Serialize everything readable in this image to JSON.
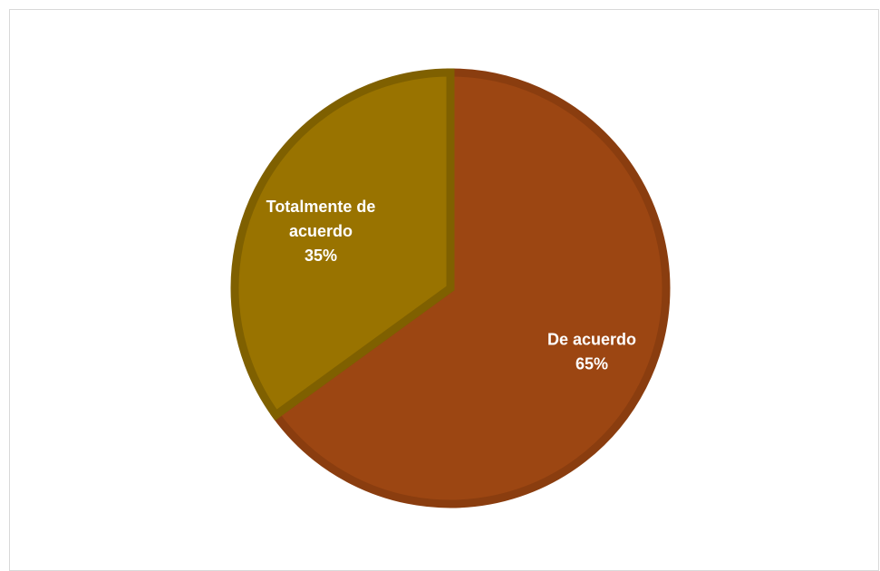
{
  "chart_data": {
    "type": "pie",
    "title": "",
    "start_angle_deg": 0,
    "slices": [
      {
        "name_lines": [
          "De acuerdo"
        ],
        "percent_label": "65%",
        "value": 65,
        "color": "#9c4612",
        "stroke": "#8a3d0f"
      },
      {
        "name_lines": [
          "Totalmente de",
          "acuerdo"
        ],
        "percent_label": "35%",
        "value": 35,
        "color": "#997300",
        "stroke": "#7f6000"
      }
    ],
    "legend": "none"
  }
}
